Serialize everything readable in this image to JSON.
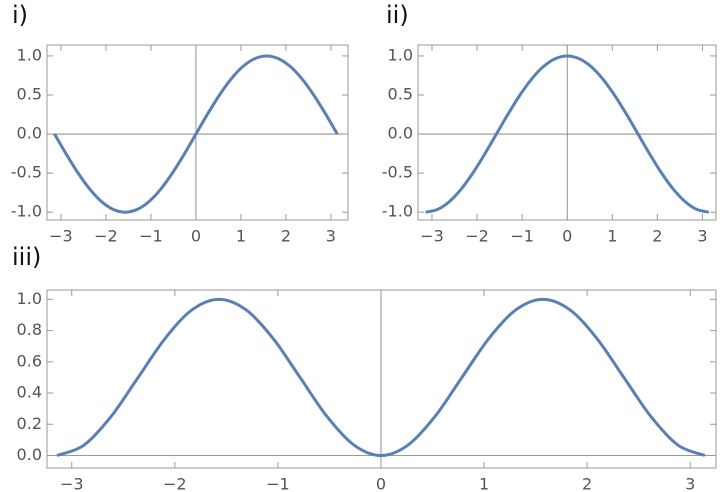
{
  "chart_data": [
    {
      "type": "line",
      "label": "i)",
      "color": "#5a7fb5",
      "x": [
        -3.142,
        -2.88,
        -2.618,
        -2.356,
        -2.094,
        -1.833,
        -1.571,
        -1.309,
        -1.047,
        -0.785,
        -0.524,
        -0.262,
        0,
        0.262,
        0.524,
        0.785,
        1.047,
        1.309,
        1.571,
        1.833,
        2.094,
        2.356,
        2.618,
        2.88,
        3.142
      ],
      "values": [
        0,
        -0.259,
        -0.5,
        -0.707,
        -0.866,
        -0.966,
        -1,
        -0.966,
        -0.866,
        -0.707,
        -0.5,
        -0.259,
        0,
        0.259,
        0.5,
        0.707,
        0.866,
        0.966,
        1,
        0.966,
        0.866,
        0.707,
        0.5,
        0.259,
        0
      ],
      "xlim": [
        -3.31,
        3.38
      ],
      "ylim": [
        -1.1,
        1.14
      ],
      "xticks": [
        {
          "value": -3,
          "label": "−3"
        },
        {
          "value": -2,
          "label": "−2"
        },
        {
          "value": -1,
          "label": "−1"
        },
        0,
        1,
        2,
        3
      ],
      "yticks": [
        {
          "value": 1,
          "label": "1.0"
        },
        {
          "value": 0.5,
          "label": "0.5"
        },
        {
          "value": 0,
          "label": "0.0"
        },
        {
          "value": -0.5,
          "label": "-0.5"
        },
        {
          "value": -1,
          "label": "-1.0"
        }
      ]
    },
    {
      "type": "line",
      "label": "ii)",
      "color": "#5a7fb5",
      "x": [
        -3.142,
        -2.88,
        -2.618,
        -2.356,
        -2.094,
        -1.833,
        -1.571,
        -1.309,
        -1.047,
        -0.785,
        -0.524,
        -0.262,
        0,
        0.262,
        0.524,
        0.785,
        1.047,
        1.309,
        1.571,
        1.833,
        2.094,
        2.356,
        2.618,
        2.88,
        3.142
      ],
      "values": [
        -1,
        -0.966,
        -0.866,
        -0.707,
        -0.5,
        -0.259,
        0,
        0.259,
        0.5,
        0.707,
        0.866,
        0.966,
        1,
        0.966,
        0.866,
        0.707,
        0.5,
        0.259,
        0,
        -0.259,
        -0.5,
        -0.707,
        -0.866,
        -0.966,
        -1
      ],
      "xlim": [
        -3.31,
        3.3
      ],
      "ylim": [
        -1.1,
        1.14
      ],
      "xticks": [
        {
          "value": -3,
          "label": "−3"
        },
        {
          "value": -2,
          "label": "−2"
        },
        {
          "value": -1,
          "label": "−1"
        },
        0,
        1,
        2,
        3
      ],
      "yticks": [
        {
          "value": 1,
          "label": "1.0"
        },
        {
          "value": 0.5,
          "label": "0.5"
        },
        {
          "value": 0,
          "label": "0.0"
        },
        {
          "value": -0.5,
          "label": "-0.5"
        },
        {
          "value": -1,
          "label": "-1.0"
        }
      ]
    },
    {
      "type": "line",
      "label": "iii)",
      "color": "#5a7fb5",
      "x": [
        -3.142,
        -2.88,
        -2.618,
        -2.356,
        -2.094,
        -1.833,
        -1.571,
        -1.309,
        -1.047,
        -0.785,
        -0.524,
        -0.262,
        0,
        0.262,
        0.524,
        0.785,
        1.047,
        1.309,
        1.571,
        1.833,
        2.094,
        2.356,
        2.618,
        2.88,
        3.142
      ],
      "values": [
        0,
        0.067,
        0.25,
        0.5,
        0.75,
        0.933,
        1,
        0.933,
        0.75,
        0.5,
        0.25,
        0.067,
        0,
        0.067,
        0.25,
        0.5,
        0.75,
        0.933,
        1,
        0.933,
        0.75,
        0.5,
        0.25,
        0.067,
        0
      ],
      "xlim": [
        -3.24,
        3.25
      ],
      "ylim": [
        -0.08,
        1.06
      ],
      "xticks": [
        {
          "value": -3,
          "label": "−3"
        },
        {
          "value": -2,
          "label": "−2"
        },
        {
          "value": -1,
          "label": "−1"
        },
        0,
        1,
        2,
        3
      ],
      "yticks": [
        {
          "value": 0,
          "label": "0.0"
        },
        {
          "value": 0.2,
          "label": "0.2"
        },
        {
          "value": 0.4,
          "label": "0.4"
        },
        {
          "value": 0.6,
          "label": "0.6"
        },
        {
          "value": 0.8,
          "label": "0.8"
        },
        {
          "value": 1,
          "label": "1.0"
        }
      ]
    }
  ]
}
